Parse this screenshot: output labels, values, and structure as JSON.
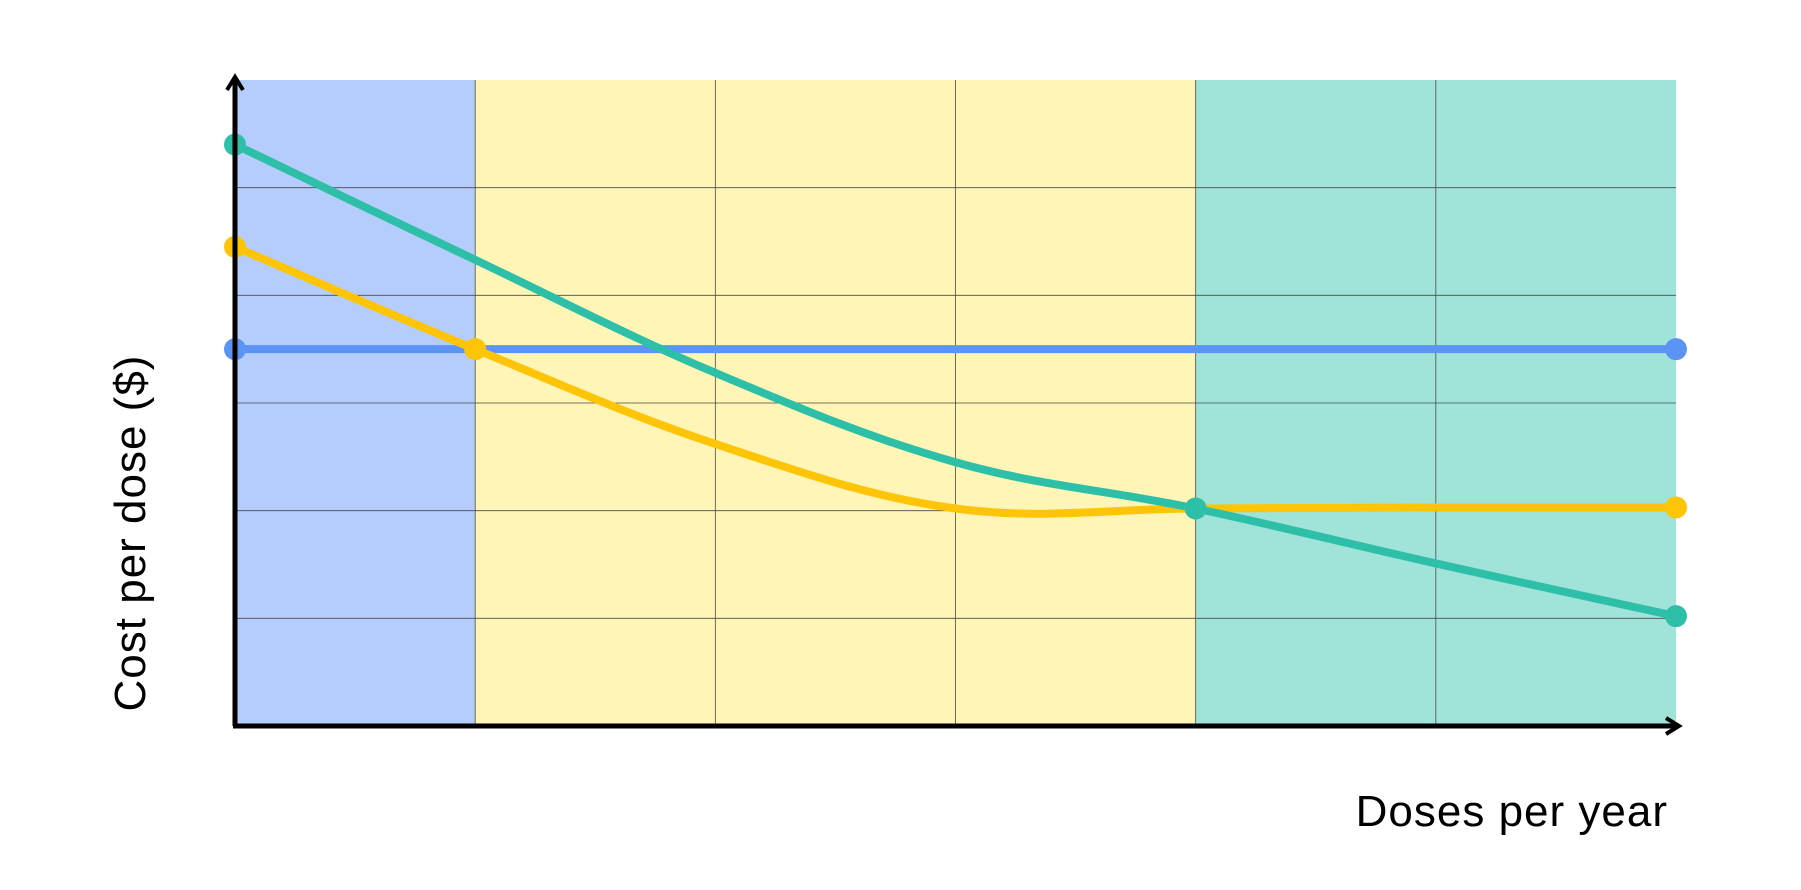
{
  "chart_data": {
    "type": "line",
    "xlabel": "Doses per year",
    "ylabel": "Cost per dose ($)",
    "x": [
      0,
      1,
      2,
      3,
      4,
      5,
      6
    ],
    "xlim": [
      0,
      6
    ],
    "ylim": [
      0,
      6
    ],
    "grid": true,
    "regions": [
      {
        "from": 0,
        "to": 1,
        "color": "#b5cdfb"
      },
      {
        "from": 1,
        "to": 4,
        "color": "#fef5b6"
      },
      {
        "from": 4,
        "to": 6,
        "color": "#a0e3d9"
      }
    ],
    "series": [
      {
        "color": "#5b94f5",
        "values": [
          3.5,
          3.5,
          3.5,
          3.5,
          3.5,
          3.5,
          3.5
        ],
        "markers": [
          0,
          6
        ],
        "smooth": false
      },
      {
        "color": "#fec508",
        "values": [
          4.45,
          3.5,
          2.62,
          2.02,
          2.02,
          2.03,
          2.03
        ],
        "markers": [
          0,
          1,
          4,
          6
        ],
        "smooth": true
      },
      {
        "color": "#2ebfa9",
        "values": [
          5.4,
          4.33,
          3.28,
          2.45,
          2.02,
          1.51,
          1.02
        ],
        "markers": [
          0,
          4,
          6
        ],
        "smooth": true
      }
    ],
    "colors": {
      "axis": "#000000",
      "grid": "#4a4a4a"
    }
  }
}
